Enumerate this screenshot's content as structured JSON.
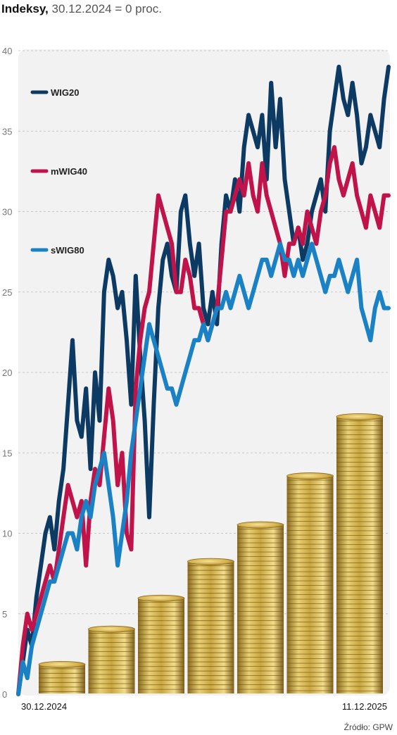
{
  "chart_data": {
    "type": "line",
    "title": "Indeksy,",
    "subtitle": "30.12.2024 = 0 proc.",
    "source": "Źródło: GPW",
    "ylim": [
      0,
      40
    ],
    "y_ticks": [
      "0",
      "5",
      "10",
      "15",
      "20",
      "25",
      "30",
      "35",
      "40"
    ],
    "x_start_label": "30.12.2024",
    "x_end_label": "11.12.2025",
    "grid": true,
    "legend_position": "top-left",
    "series": [
      {
        "name": "WIG20",
        "color": "#0d3a63",
        "values": [
          0,
          2,
          4,
          3,
          6,
          8,
          10,
          11,
          9,
          12,
          14,
          18,
          22,
          17,
          16,
          19,
          14,
          20,
          17,
          25,
          27,
          26,
          24,
          25,
          22,
          18,
          26,
          21,
          17,
          11,
          18,
          24,
          27,
          28,
          26,
          25,
          30,
          31,
          28,
          26,
          28,
          24,
          23,
          25,
          23,
          28,
          31,
          30,
          32,
          30,
          34,
          36,
          35,
          34,
          36,
          32,
          38,
          34,
          37,
          32,
          30,
          28,
          29,
          27,
          28,
          30,
          31,
          32,
          30,
          35,
          37,
          39,
          37,
          36,
          38,
          36,
          33,
          34,
          36,
          35,
          34,
          37,
          39
        ]
      },
      {
        "name": "mWIG40",
        "color": "#c0134a",
        "values": [
          0,
          3,
          5,
          4,
          5,
          6,
          7,
          8,
          7,
          9,
          11,
          13,
          12,
          11,
          12,
          8,
          12,
          14,
          13,
          16,
          19,
          17,
          13,
          15,
          10,
          9,
          19,
          22,
          24,
          25,
          28,
          31,
          30,
          29,
          28,
          25,
          25,
          27,
          26,
          24,
          24,
          23,
          22,
          23,
          24,
          27,
          30,
          30,
          31,
          32,
          31,
          33,
          31,
          30,
          33,
          31,
          30,
          29,
          28,
          26,
          28,
          28,
          29,
          28,
          30,
          29,
          28,
          30,
          31,
          33,
          34,
          32,
          31,
          32,
          33,
          31,
          30,
          29,
          31,
          30,
          29,
          31,
          31
        ]
      },
      {
        "name": "sWIG80",
        "color": "#1a82c4",
        "values": [
          0,
          2,
          1,
          3,
          4,
          5,
          6,
          7,
          7,
          8,
          9,
          10,
          10,
          9,
          11,
          12,
          11,
          13,
          14,
          15,
          13,
          11,
          8,
          10,
          12,
          15,
          17,
          19,
          21,
          23,
          22,
          21,
          20,
          19,
          19,
          18,
          19,
          20,
          21,
          22,
          22,
          23,
          22,
          23,
          24,
          24,
          25,
          24,
          25,
          26,
          25,
          24,
          25,
          26,
          27,
          27,
          26,
          27,
          28,
          27,
          27,
          26,
          27,
          26,
          27,
          28,
          27,
          26,
          25,
          26,
          26,
          27,
          26,
          25,
          26,
          27,
          24,
          23,
          22,
          24,
          25,
          24,
          24
        ]
      }
    ]
  },
  "coin_stacks": [
    {
      "level": 0.045
    },
    {
      "level": 0.1
    },
    {
      "level": 0.148
    },
    {
      "level": 0.205
    },
    {
      "level": 0.262
    },
    {
      "level": 0.338
    },
    {
      "level": 0.43
    }
  ]
}
